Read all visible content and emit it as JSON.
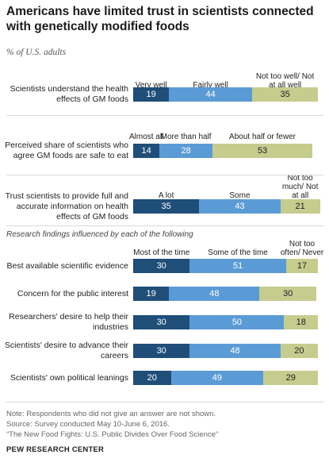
{
  "title": "Americans have limited trust in scientists connected with genetically modified foods",
  "subtitle": "% of U.S. adults",
  "section_note": "Research findings influenced by each of the following",
  "colors": {
    "dark": "#1f4e79",
    "mid": "#5b9bd5",
    "light": "#c5cc8e"
  },
  "chart_data": [
    {
      "type": "bar",
      "stacked": true,
      "orientation": "horizontal",
      "categories": [
        "Scientists understand the health effects of GM foods"
      ],
      "segment_labels": [
        "Very well",
        "Fairly well",
        "Not too well/ Not at all well"
      ],
      "series": [
        {
          "name": "Very well",
          "values": [
            19
          ]
        },
        {
          "name": "Fairly well",
          "values": [
            44
          ]
        },
        {
          "name": "Not too well/ Not at all well",
          "values": [
            35
          ]
        }
      ]
    },
    {
      "type": "bar",
      "stacked": true,
      "orientation": "horizontal",
      "categories": [
        "Perceived share of scientists who agree GM foods are safe to eat"
      ],
      "segment_labels": [
        "Almost all",
        "More than half",
        "About half or fewer"
      ],
      "series": [
        {
          "name": "Almost all",
          "values": [
            14
          ]
        },
        {
          "name": "More than half",
          "values": [
            28
          ]
        },
        {
          "name": "About half or fewer",
          "values": [
            53
          ]
        }
      ]
    },
    {
      "type": "bar",
      "stacked": true,
      "orientation": "horizontal",
      "categories": [
        "Trust scientists to provide full and accurate information on health effects of GM foods"
      ],
      "segment_labels": [
        "A lot",
        "Some",
        "Not too much/ Not at all"
      ],
      "series": [
        {
          "name": "A lot",
          "values": [
            35
          ]
        },
        {
          "name": "Some",
          "values": [
            43
          ]
        },
        {
          "name": "Not too much/ Not at all",
          "values": [
            21
          ]
        }
      ]
    },
    {
      "type": "bar",
      "stacked": true,
      "orientation": "horizontal",
      "categories": [
        "Best available scientific evidence",
        "Concern for the public interest",
        "Researchers' desire to help their industries",
        "Scientists' desire to advance their careers",
        "Scientists' own political leanings"
      ],
      "segment_labels": [
        "Most of the time",
        "Some of the time",
        "Not too often/ Never"
      ],
      "series": [
        {
          "name": "Most of the time",
          "values": [
            30,
            19,
            30,
            30,
            20
          ]
        },
        {
          "name": "Some of the time",
          "values": [
            51,
            48,
            50,
            48,
            49
          ]
        },
        {
          "name": "Not too often/ Never",
          "values": [
            17,
            30,
            18,
            20,
            29
          ]
        }
      ]
    }
  ],
  "footer": {
    "note": "Note: Respondents who did not give an answer are not shown.",
    "source": "Source: Survey conducted May 10-June 6, 2016.",
    "report": "“The New Food Fights: U.S. Public Divides Over Food Science”",
    "brand": "PEW RESEARCH CENTER"
  }
}
